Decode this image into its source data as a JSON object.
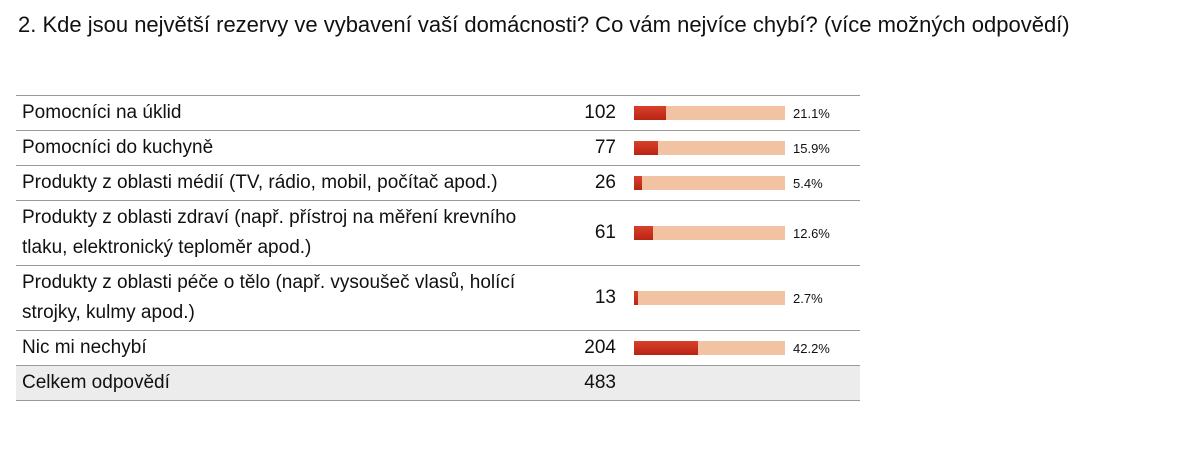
{
  "title": "2. Kde jsou největší rezervy ve vybavení vaší domácnosti? Co vám nejvíce chybí? (více možných odpovědí)",
  "rows": [
    {
      "label": "Pomocníci na úklid",
      "count": 102,
      "percent": 21.1,
      "percent_label": "21.1%"
    },
    {
      "label": "Pomocníci do kuchyně",
      "count": 77,
      "percent": 15.9,
      "percent_label": "15.9%"
    },
    {
      "label": "Produkty z oblasti médií (TV, rádio, mobil, počítač apod.)",
      "count": 26,
      "percent": 5.4,
      "percent_label": "5.4%"
    },
    {
      "label": "Produkty z oblasti zdraví (např. přístroj na měření krevního tlaku, elektronický teploměr apod.)",
      "count": 61,
      "percent": 12.6,
      "percent_label": "12.6%"
    },
    {
      "label": "Produkty z oblasti péče o tělo (např. vysoušeč vlasů, holící strojky, kulmy apod.)",
      "count": 13,
      "percent": 2.7,
      "percent_label": "2.7%"
    },
    {
      "label": "Nic mi nechybí",
      "count": 204,
      "percent": 42.2,
      "percent_label": "42.2%"
    }
  ],
  "total": {
    "label": "Celkem odpovědí",
    "count": 483
  }
}
